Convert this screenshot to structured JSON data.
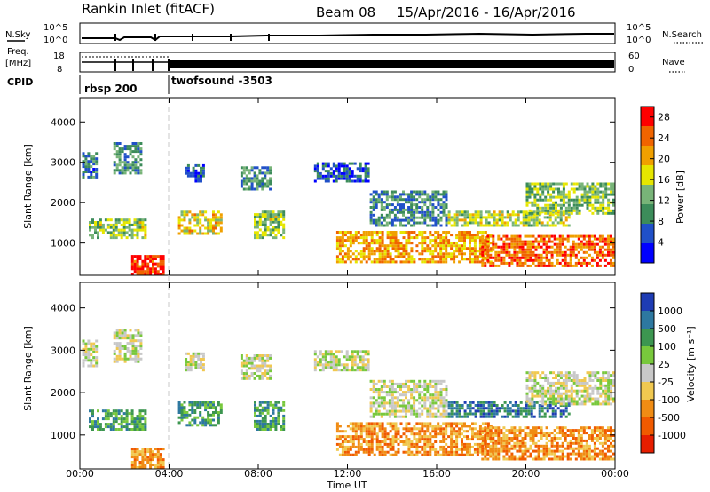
{
  "header": {
    "title": "Rankin Inlet (fitACF)",
    "beam": "Beam 08",
    "date_range": "15/Apr/2016 - 16/Apr/2016"
  },
  "status_panels": {
    "nsky_label": "N.Sky",
    "nsearch_label": "N.Search",
    "n_ticks_left": [
      "10^5",
      "10^0"
    ],
    "n_ticks_right": [
      "10^5",
      "10^0"
    ],
    "freq_label": "Freq.",
    "freq_unit": "[MHz]",
    "freq_ticks": [
      "18",
      "8"
    ],
    "nave_label": "Nave",
    "nave_ticks": [
      "60",
      "0"
    ],
    "cpid_label": "CPID",
    "cpid_segments": [
      "rbsp 200",
      "twofsound -3503"
    ]
  },
  "chart_data": [
    {
      "type": "heatmap",
      "panel": "power",
      "ylabel": "Slant Range [km]",
      "xlabel": "Time UT",
      "x_ticks": [
        "00:00",
        "04:00",
        "08:00",
        "12:00",
        "16:00",
        "20:00",
        "00:00"
      ],
      "y_ticks": [
        "1000",
        "2000",
        "3000",
        "4000"
      ],
      "ylim": [
        200,
        4600
      ],
      "xlim_hours": [
        0,
        24
      ],
      "colorbar": {
        "label": "Power [dB]",
        "ticks": [
          "4",
          "8",
          "12",
          "16",
          "20",
          "24",
          "28"
        ],
        "range": [
          0,
          30
        ],
        "colors": [
          "#0000ff",
          "#2050c8",
          "#3c8c5a",
          "#78b478",
          "#e6e600",
          "#f0a000",
          "#f06400",
          "#ff0000"
        ]
      },
      "blobs": [
        {
          "t0": 0.1,
          "t1": 0.8,
          "r0": 2600,
          "r1": 3250,
          "v": 8
        },
        {
          "t0": 1.5,
          "t1": 2.8,
          "r0": 2700,
          "r1": 3500,
          "v": 10
        },
        {
          "t0": 0.4,
          "t1": 3.0,
          "r0": 1100,
          "r1": 1600,
          "v": 14
        },
        {
          "t0": 2.3,
          "t1": 3.8,
          "r0": 200,
          "r1": 700,
          "v": 27
        },
        {
          "t0": 4.4,
          "t1": 6.4,
          "r0": 1200,
          "r1": 1800,
          "v": 18
        },
        {
          "t0": 4.7,
          "t1": 5.6,
          "r0": 2500,
          "r1": 2950,
          "v": 6
        },
        {
          "t0": 7.2,
          "t1": 8.6,
          "r0": 2300,
          "r1": 2900,
          "v": 10
        },
        {
          "t0": 7.8,
          "t1": 9.2,
          "r0": 1100,
          "r1": 1800,
          "v": 14
        },
        {
          "t0": 10.5,
          "t1": 13.0,
          "r0": 2500,
          "r1": 3000,
          "v": 6
        },
        {
          "t0": 11.5,
          "t1": 18.5,
          "r0": 500,
          "r1": 1300,
          "v": 21
        },
        {
          "t0": 13.0,
          "t1": 16.5,
          "r0": 1400,
          "r1": 2300,
          "v": 9
        },
        {
          "t0": 16.5,
          "t1": 22.0,
          "r0": 1400,
          "r1": 1800,
          "v": 15
        },
        {
          "t0": 18.0,
          "t1": 24.0,
          "r0": 400,
          "r1": 1200,
          "v": 24
        },
        {
          "t0": 20.0,
          "t1": 24.0,
          "r0": 1700,
          "r1": 2500,
          "v": 13
        }
      ]
    },
    {
      "type": "heatmap",
      "panel": "velocity",
      "ylabel": "Slant Range [km]",
      "xlabel": "Time UT",
      "x_ticks": [
        "00:00",
        "04:00",
        "08:00",
        "12:00",
        "16:00",
        "20:00",
        "00:00"
      ],
      "y_ticks": [
        "1000",
        "2000",
        "3000",
        "4000"
      ],
      "ylim": [
        200,
        4600
      ],
      "xlim_hours": [
        0,
        24
      ],
      "colorbar": {
        "label": "Velocity [m s⁻¹]",
        "ticks": [
          "1000",
          "500",
          "100",
          "25",
          "-25",
          "-100",
          "-500",
          "-1000"
        ],
        "colors": [
          "#1e3cb4",
          "#2d78a0",
          "#3c9650",
          "#78c83c",
          "#c8c8c8",
          "#f0c850",
          "#f08c14",
          "#f05a00",
          "#e61e00"
        ]
      },
      "blobs": [
        {
          "t0": 0.1,
          "t1": 0.8,
          "r0": 2600,
          "r1": 3250,
          "v": 4
        },
        {
          "t0": 1.5,
          "t1": 2.8,
          "r0": 2700,
          "r1": 3500,
          "v": 4
        },
        {
          "t0": 0.4,
          "t1": 3.0,
          "r0": 1100,
          "r1": 1600,
          "v": 2
        },
        {
          "t0": 2.3,
          "t1": 3.8,
          "r0": 200,
          "r1": 700,
          "v": 6
        },
        {
          "t0": 4.4,
          "t1": 6.4,
          "r0": 1200,
          "r1": 1800,
          "v": 2
        },
        {
          "t0": 4.7,
          "t1": 5.6,
          "r0": 2500,
          "r1": 2950,
          "v": 4
        },
        {
          "t0": 7.2,
          "t1": 8.6,
          "r0": 2300,
          "r1": 2900,
          "v": 4
        },
        {
          "t0": 7.8,
          "t1": 9.2,
          "r0": 1100,
          "r1": 1800,
          "v": 2
        },
        {
          "t0": 10.5,
          "t1": 13.0,
          "r0": 2500,
          "r1": 3000,
          "v": 4
        },
        {
          "t0": 11.5,
          "t1": 18.5,
          "r0": 500,
          "r1": 1300,
          "v": 6
        },
        {
          "t0": 13.0,
          "t1": 16.5,
          "r0": 1400,
          "r1": 2300,
          "v": 4
        },
        {
          "t0": 16.5,
          "t1": 22.0,
          "r0": 1400,
          "r1": 1800,
          "v": 1
        },
        {
          "t0": 18.0,
          "t1": 24.0,
          "r0": 400,
          "r1": 1200,
          "v": 6
        },
        {
          "t0": 20.0,
          "t1": 24.0,
          "r0": 1700,
          "r1": 2500,
          "v": 4
        }
      ]
    }
  ]
}
